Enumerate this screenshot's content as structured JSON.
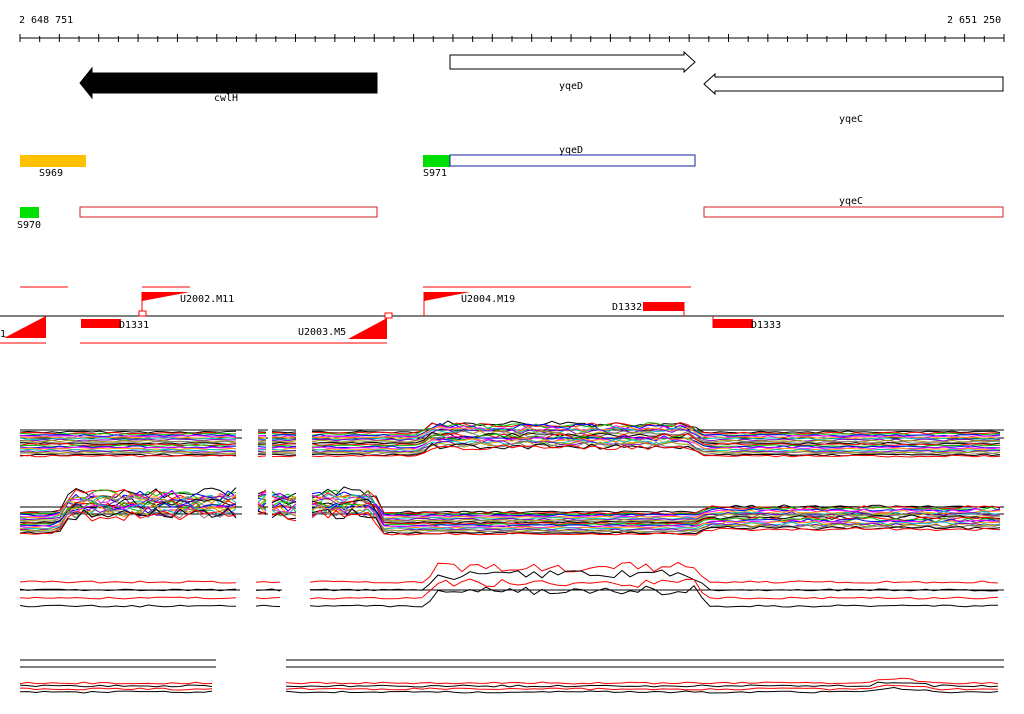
{
  "coordinates": {
    "start": "2 648 751",
    "end": "2 651 250"
  },
  "genes": [
    {
      "name": "cwlH",
      "strand": "minus",
      "style": "filled"
    },
    {
      "name": "yqeD",
      "strand": "plus",
      "style": "outline"
    },
    {
      "name": "yqeC",
      "strand": "minus",
      "style": "outline"
    }
  ],
  "segments_row1": [
    {
      "id": "S969",
      "color": "#ffc000"
    },
    {
      "id": "S971",
      "color": "#00e000"
    },
    {
      "id": "yqeD",
      "color": "#1020a0"
    }
  ],
  "segments_row2": [
    {
      "id": "S970",
      "color": "#00e000"
    },
    {
      "id": "cwlH",
      "color": "#d02020"
    },
    {
      "id": "yqeC",
      "color": "#d02020"
    }
  ],
  "features": {
    "upper_labels": [
      "U2002.M11",
      "U2004.M19",
      "D1332"
    ],
    "lower_labels": [
      "1",
      "D1331",
      "U2003.M5",
      "D1333"
    ],
    "color": "#ff0000"
  },
  "tracks": {
    "count": 4,
    "colors": [
      "#000000",
      "#ff0000",
      "#00c000",
      "#0000ff",
      "#ff00ff",
      "#ffa000",
      "#00c0c0",
      "#8000c0",
      "#a0a000",
      "#808080"
    ]
  }
}
